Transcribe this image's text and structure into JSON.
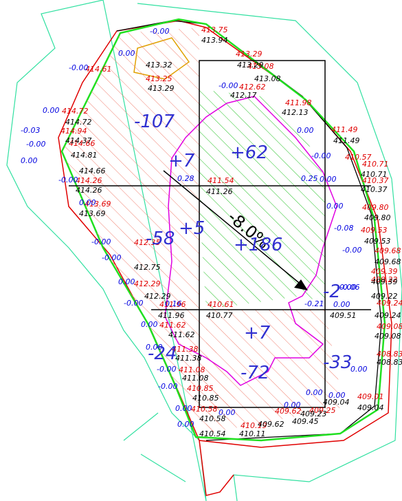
{
  "design_elevations": [
    "413.75",
    "413.29",
    "413.08",
    "414.61",
    "413.25",
    "412.62",
    "411.98",
    "411.49",
    "410.57",
    "410.71",
    "410.37",
    "409.80",
    "409.53",
    "409.68",
    "409.39",
    "409.22",
    "409.24",
    "409.08",
    "408.83",
    "409.01",
    "409.25",
    "409.62",
    "410.19",
    "410.58",
    "410.85",
    "411.08",
    "411.38",
    "411.62",
    "411.96",
    "410.61",
    "411.54",
    "412.29",
    "412.35",
    "413.69",
    "414.26",
    "414.66",
    "414.94",
    "414.72"
  ],
  "existing_elevations": [
    "413.94",
    "413.32",
    "413.29",
    "413.29",
    "413.08",
    "412.17",
    "412.13",
    "411.49",
    "410.71",
    "410.37",
    "409.80",
    "409.53",
    "409.68",
    "409.39",
    "409.22",
    "409.24",
    "409.08",
    "408.83",
    "409.04",
    "409.04",
    "409.23",
    "409.45",
    "409.62",
    "410.11",
    "410.54",
    "410.58",
    "410.85",
    "411.08",
    "411.38",
    "411.62",
    "411.96",
    "410.77",
    "409.51",
    "411.26",
    "412.29",
    "412.75",
    "413.69",
    "414.26",
    "414.66",
    "414.81",
    "414.37",
    "414.72"
  ],
  "height_differences": [
    "-0.00",
    "0.00",
    "-0.00",
    "0.00",
    "-0.03",
    "-0.00",
    "0.00",
    "-0.00",
    "0.00",
    "-0.00",
    "-0.00",
    "0.00",
    "-0.00",
    "0.00",
    "0.00",
    "-0.00",
    "-0.00",
    "0.00",
    "0.00",
    "0.00",
    "0.00",
    "0.00",
    "0.00",
    "0.00",
    "0.00",
    "-0.00",
    "-0.00",
    "0.00",
    "0.00",
    "-0.00",
    "0.28",
    "0.16",
    "-0.21",
    "0.25",
    "-0.08",
    "-0.06",
    "-0.00",
    "0.00"
  ],
  "volumes": [
    "-107",
    "+62",
    "+7",
    "+5",
    "+186",
    "-58",
    "+7",
    "-72",
    "-2",
    "-33",
    "-24"
  ],
  "slope": "-8.0%"
}
